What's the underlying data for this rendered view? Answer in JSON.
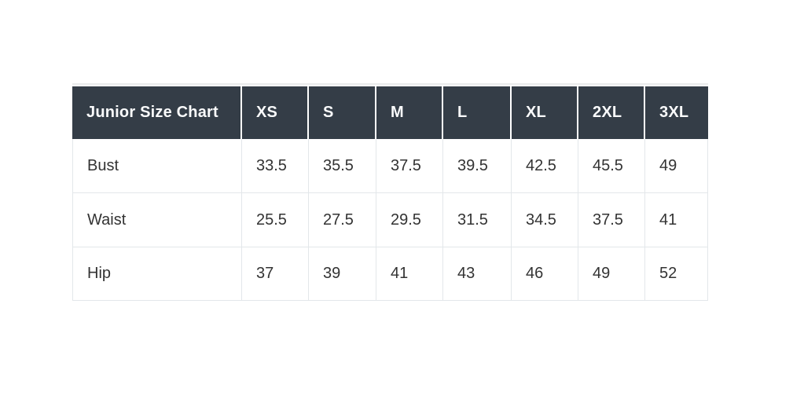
{
  "page": {
    "background": "#ffffff"
  },
  "size_chart": {
    "title": "Junior Size Chart",
    "columns": [
      "XS",
      "S",
      "M",
      "L",
      "XL",
      "2XL",
      "3XL"
    ],
    "rows": [
      {
        "label": "Bust",
        "values": [
          "33.5",
          "35.5",
          "37.5",
          "39.5",
          "42.5",
          "45.5",
          "49"
        ]
      },
      {
        "label": "Waist",
        "values": [
          "25.5",
          "27.5",
          "29.5",
          "31.5",
          "34.5",
          "37.5",
          "41"
        ]
      },
      {
        "label": "Hip",
        "values": [
          "37",
          "39",
          "41",
          "43",
          "46",
          "49",
          "52"
        ]
      }
    ],
    "colors": {
      "header_bg": "#343d47",
      "header_text": "#fafbfc",
      "body_text": "#333333",
      "row_border": "#e3e7ea",
      "header_separator": "#ffffff",
      "top_border": "#e9eaeb"
    }
  },
  "chart_data": {
    "type": "table",
    "title": "Junior Size Chart",
    "columns": [
      "XS",
      "S",
      "M",
      "L",
      "XL",
      "2XL",
      "3XL"
    ],
    "rows": [
      {
        "label": "Bust",
        "values": [
          33.5,
          35.5,
          37.5,
          39.5,
          42.5,
          45.5,
          49
        ]
      },
      {
        "label": "Waist",
        "values": [
          25.5,
          27.5,
          29.5,
          31.5,
          34.5,
          37.5,
          41
        ]
      },
      {
        "label": "Hip",
        "values": [
          37,
          39,
          41,
          43,
          46,
          49,
          52
        ]
      }
    ]
  }
}
